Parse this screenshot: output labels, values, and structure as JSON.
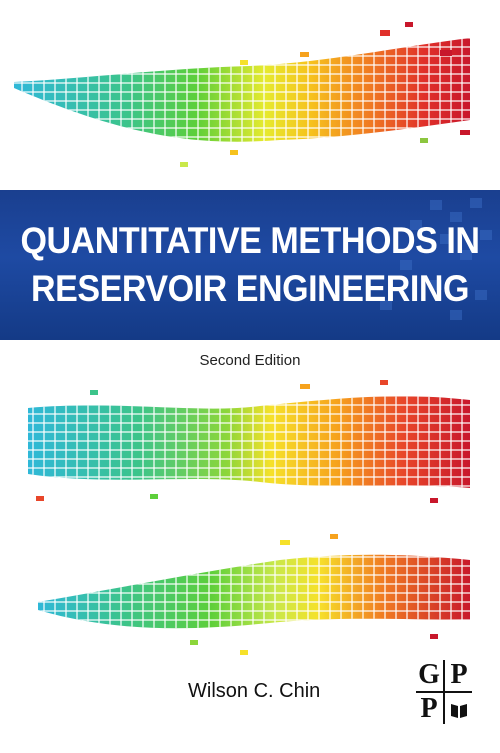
{
  "cover": {
    "title_line1": "QUANTITATIVE METHODS IN",
    "title_line2": "RESERVOIR ENGINEERING",
    "edition": "Second Edition",
    "author": "Wilson C. Chin",
    "publisher_logo": {
      "letters": [
        "G",
        "P",
        "P",
        ""
      ],
      "icon": "books-icon"
    }
  },
  "colors": {
    "band_blue": "#1e4aa3",
    "gradient": [
      "#2fb8d8",
      "#3cc48a",
      "#5dcf3a",
      "#c9e84a",
      "#f6e12a",
      "#f6a21d",
      "#e8462a",
      "#c8172b"
    ]
  }
}
